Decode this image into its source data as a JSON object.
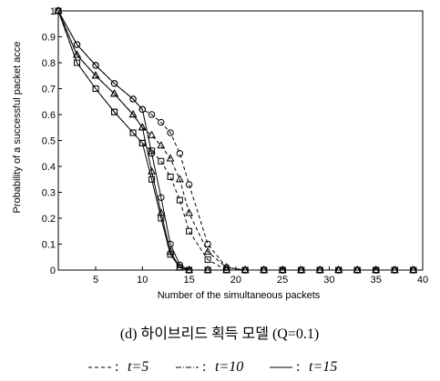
{
  "chart_data": {
    "type": "line",
    "xlabel": "Number of the simultaneous packets",
    "ylabel": "Probability of a successful packet acce",
    "caption": "(d) 하이브리드 획득 모델 (Q=0.1)",
    "legend": [
      {
        "label": "t=5",
        "dash": "4 3"
      },
      {
        "label": "t=10",
        "dash": "6 2 1 2"
      },
      {
        "label": "t=15",
        "dash": "none"
      }
    ],
    "x": [
      1,
      3,
      5,
      7,
      9,
      10,
      11,
      12,
      13,
      14,
      15,
      17,
      19,
      21,
      23,
      25,
      27,
      29,
      31,
      33,
      35,
      37,
      39
    ],
    "series": [
      {
        "color": "#000",
        "marker": "circle",
        "dash": "none",
        "values": [
          1,
          0.87,
          0.79,
          0.72,
          0.66,
          0.62,
          0.45,
          0.28,
          0.1,
          0.02,
          0,
          0,
          0,
          0,
          0,
          0,
          0,
          0,
          0,
          0,
          0,
          0,
          0
        ]
      },
      {
        "color": "#000",
        "marker": "triangle",
        "dash": "none",
        "values": [
          1,
          0.83,
          0.75,
          0.68,
          0.6,
          0.55,
          0.38,
          0.22,
          0.07,
          0.01,
          0,
          0,
          0,
          0,
          0,
          0,
          0,
          0,
          0,
          0,
          0,
          0,
          0
        ]
      },
      {
        "color": "#000",
        "marker": "square",
        "dash": "none",
        "values": [
          1,
          0.8,
          0.7,
          0.61,
          0.53,
          0.49,
          0.35,
          0.2,
          0.06,
          0.01,
          0,
          0,
          0,
          0,
          0,
          0,
          0,
          0,
          0,
          0,
          0,
          0,
          0
        ]
      },
      {
        "color": "#000",
        "marker": "circle",
        "dash": "4 3",
        "values": [
          1,
          0.87,
          0.79,
          0.72,
          0.66,
          0.62,
          0.6,
          0.57,
          0.53,
          0.45,
          0.33,
          0.1,
          0.01,
          0,
          0,
          0,
          0,
          0,
          0,
          0,
          0,
          0,
          0
        ]
      },
      {
        "color": "#000",
        "marker": "triangle",
        "dash": "4 3",
        "values": [
          1,
          0.83,
          0.75,
          0.68,
          0.6,
          0.55,
          0.52,
          0.48,
          0.43,
          0.35,
          0.22,
          0.07,
          0.01,
          0,
          0,
          0,
          0,
          0,
          0,
          0,
          0,
          0,
          0
        ]
      },
      {
        "color": "#000",
        "marker": "square",
        "dash": "4 3",
        "values": [
          1,
          0.8,
          0.7,
          0.61,
          0.53,
          0.49,
          0.46,
          0.42,
          0.36,
          0.27,
          0.15,
          0.04,
          0,
          0,
          0,
          0,
          0,
          0,
          0,
          0,
          0,
          0,
          0
        ]
      }
    ],
    "xlim": [
      1,
      40
    ],
    "xticks": [
      5,
      10,
      15,
      20,
      25,
      30,
      35,
      40
    ],
    "ylim": [
      0,
      1
    ],
    "yticks": [
      0,
      0.1,
      0.2,
      0.3,
      0.4,
      0.5,
      0.6,
      0.7,
      0.8,
      0.9,
      1
    ]
  }
}
